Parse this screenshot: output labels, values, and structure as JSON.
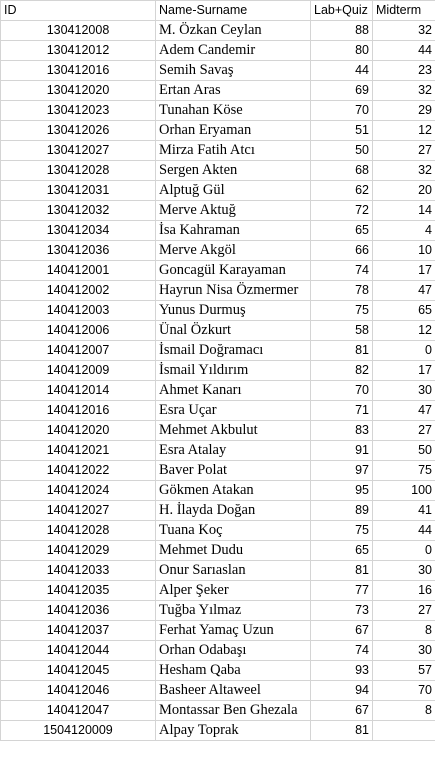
{
  "columns": [
    "ID",
    "Name-Surname",
    "Lab+Quiz",
    "Midterm"
  ],
  "rows": [
    {
      "id": "130412008",
      "name": "M. Özkan Ceylan",
      "lab": "88",
      "mid": "32"
    },
    {
      "id": "130412012",
      "name": "Adem Candemir",
      "lab": "80",
      "mid": "44"
    },
    {
      "id": "130412016",
      "name": "Semih Savaş",
      "lab": "44",
      "mid": "23"
    },
    {
      "id": "130412020",
      "name": "Ertan Aras",
      "lab": "69",
      "mid": "32"
    },
    {
      "id": "130412023",
      "name": "Tunahan Köse",
      "lab": "70",
      "mid": "29"
    },
    {
      "id": "130412026",
      "name": "Orhan Eryaman",
      "lab": "51",
      "mid": "12"
    },
    {
      "id": "130412027",
      "name": "Mirza Fatih Atcı",
      "lab": "50",
      "mid": "27"
    },
    {
      "id": "130412028",
      "name": "Sergen Akten",
      "lab": "68",
      "mid": "32"
    },
    {
      "id": "130412031",
      "name": "Alptuğ Gül",
      "lab": "62",
      "mid": "20"
    },
    {
      "id": "130412032",
      "name": "Merve Aktuğ",
      "lab": "72",
      "mid": "14"
    },
    {
      "id": "130412034",
      "name": "İsa Kahraman",
      "lab": "65",
      "mid": "4"
    },
    {
      "id": "130412036",
      "name": "Merve Akgöl",
      "lab": "66",
      "mid": "10"
    },
    {
      "id": "140412001",
      "name": "Goncagül Karayaman",
      "lab": "74",
      "mid": "17"
    },
    {
      "id": "140412002",
      "name": "Hayrun Nisa Özmermer",
      "lab": "78",
      "mid": "47"
    },
    {
      "id": "140412003",
      "name": "Yunus Durmuş",
      "lab": "75",
      "mid": "65"
    },
    {
      "id": "140412006",
      "name": "Ünal Özkurt",
      "lab": "58",
      "mid": "12"
    },
    {
      "id": "140412007",
      "name": "İsmail Doğramacı",
      "lab": "81",
      "mid": "0"
    },
    {
      "id": "140412009",
      "name": "İsmail Yıldırım",
      "lab": "82",
      "mid": "17"
    },
    {
      "id": "140412014",
      "name": "Ahmet Kanarı",
      "lab": "70",
      "mid": "30"
    },
    {
      "id": "140412016",
      "name": "Esra Uçar",
      "lab": "71",
      "mid": "47"
    },
    {
      "id": "140412020",
      "name": "Mehmet Akbulut",
      "lab": "83",
      "mid": "27"
    },
    {
      "id": "140412021",
      "name": "Esra Atalay",
      "lab": "91",
      "mid": "50"
    },
    {
      "id": "140412022",
      "name": "Baver Polat",
      "lab": "97",
      "mid": "75"
    },
    {
      "id": "140412024",
      "name": "Gökmen Atakan",
      "lab": "95",
      "mid": "100"
    },
    {
      "id": "140412027",
      "name": "H. İlayda Doğan",
      "lab": "89",
      "mid": "41"
    },
    {
      "id": "140412028",
      "name": "Tuana Koç",
      "lab": "75",
      "mid": "44"
    },
    {
      "id": "140412029",
      "name": "Mehmet Dudu",
      "lab": "65",
      "mid": "0"
    },
    {
      "id": "140412033",
      "name": "Onur Sarıaslan",
      "lab": "81",
      "mid": "30"
    },
    {
      "id": "140412035",
      "name": "Alper Şeker",
      "lab": "77",
      "mid": "16"
    },
    {
      "id": "140412036",
      "name": "Tuğba Yılmaz",
      "lab": "73",
      "mid": "27"
    },
    {
      "id": "140412037",
      "name": "Ferhat Yamaç Uzun",
      "lab": "67",
      "mid": "8"
    },
    {
      "id": "140412044",
      "name": "Orhan Odabaşı",
      "lab": "74",
      "mid": "30"
    },
    {
      "id": "140412045",
      "name": "Hesham Qaba",
      "lab": "93",
      "mid": "57"
    },
    {
      "id": "140412046",
      "name": "Basheer Altaweel",
      "lab": "94",
      "mid": "70"
    },
    {
      "id": "140412047",
      "name": "Montassar Ben Ghezala",
      "lab": "67",
      "mid": "8"
    },
    {
      "id": "1504120009",
      "name": "Alpay Toprak",
      "lab": "81",
      "mid": ""
    }
  ]
}
